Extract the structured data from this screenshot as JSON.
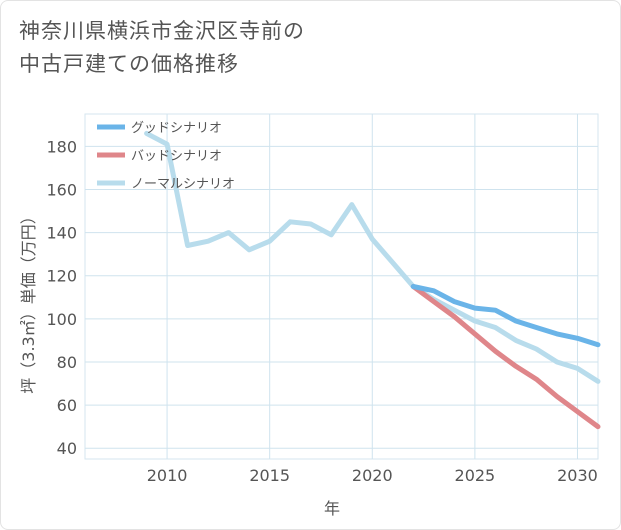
{
  "title": {
    "line1": "神奈川県横浜市金沢区寺前の",
    "line2": "中古戸建ての価格推移"
  },
  "chart_data": {
    "type": "line",
    "title": "神奈川県横浜市金沢区寺前の中古戸建ての価格推移",
    "xlabel": "年",
    "ylabel": "坪（3.3㎡）単価（万円）",
    "xlim": [
      2006,
      2031
    ],
    "ylim": [
      35,
      195
    ],
    "xticks": [
      2010,
      2015,
      2020,
      2025,
      2030
    ],
    "yticks": [
      40,
      60,
      80,
      100,
      120,
      140,
      160,
      180
    ],
    "grid": true,
    "legend_position": "top-left",
    "series": [
      {
        "name": "グッドシナリオ",
        "color": "#6ab4e8",
        "x": [
          2022,
          2023,
          2024,
          2025,
          2026,
          2027,
          2028,
          2029,
          2030,
          2031
        ],
        "y": [
          115,
          113,
          108,
          105,
          104,
          99,
          96,
          93,
          91,
          88
        ]
      },
      {
        "name": "バッドシナリオ",
        "color": "#df868a",
        "x": [
          2022,
          2023,
          2024,
          2025,
          2026,
          2027,
          2028,
          2029,
          2030,
          2031
        ],
        "y": [
          115,
          108,
          101,
          93,
          85,
          78,
          72,
          64,
          57,
          50
        ]
      },
      {
        "name": "ノーマルシナリオ",
        "color": "#b8dcec",
        "x": [
          2009,
          2010,
          2011,
          2012,
          2013,
          2014,
          2015,
          2016,
          2017,
          2018,
          2019,
          2020,
          2021,
          2022,
          2023,
          2024,
          2025,
          2026,
          2027,
          2028,
          2029,
          2030,
          2031
        ],
        "y": [
          186,
          181,
          134,
          136,
          140,
          132,
          136,
          145,
          144,
          139,
          153,
          137,
          126,
          115,
          109,
          104,
          99,
          96,
          90,
          86,
          80,
          77,
          71
        ]
      }
    ]
  }
}
